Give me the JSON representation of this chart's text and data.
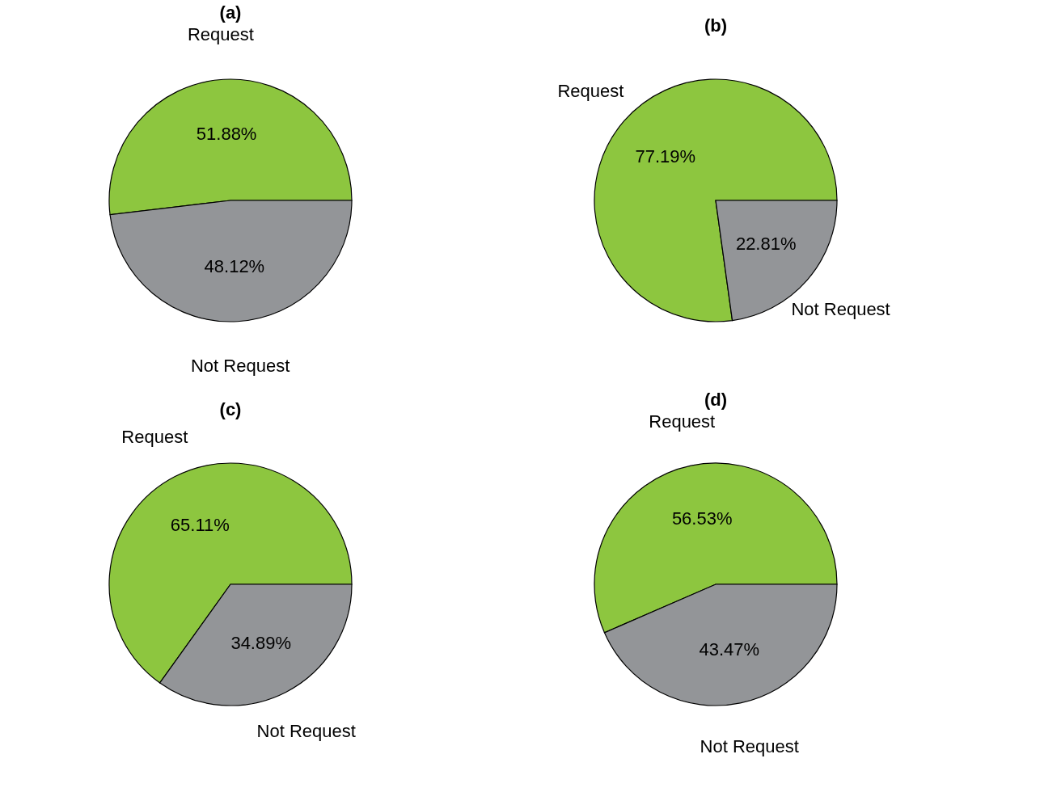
{
  "chart_data": [
    {
      "type": "pie",
      "title": "(a)",
      "categories": [
        "Request",
        "Not Request"
      ],
      "values": [
        51.88,
        48.12
      ],
      "colors": [
        "#8dc63f",
        "#939598"
      ],
      "value_labels": [
        "51.88%",
        "48.12%"
      ]
    },
    {
      "type": "pie",
      "title": "(b)",
      "categories": [
        "Request",
        "Not Request"
      ],
      "values": [
        77.19,
        22.81
      ],
      "colors": [
        "#8dc63f",
        "#939598"
      ],
      "value_labels": [
        "77.19%",
        "22.81%"
      ]
    },
    {
      "type": "pie",
      "title": "(c)",
      "categories": [
        "Request",
        "Not Request"
      ],
      "values": [
        65.11,
        34.89
      ],
      "colors": [
        "#8dc63f",
        "#939598"
      ],
      "value_labels": [
        "65.11%",
        "34.89%"
      ]
    },
    {
      "type": "pie",
      "title": "(d)",
      "categories": [
        "Request",
        "Not Request"
      ],
      "values": [
        56.53,
        43.47
      ],
      "colors": [
        "#8dc63f",
        "#939598"
      ],
      "value_labels": [
        "56.53%",
        "43.47%"
      ]
    }
  ]
}
